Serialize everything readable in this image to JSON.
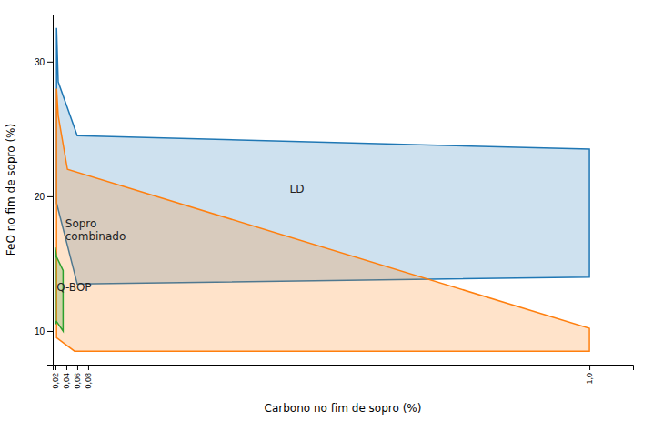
{
  "chart_data": {
    "type": "polygon",
    "xlabel": "Carbono no fim de sopro (%)",
    "ylabel": "FeO no fim de sopro (%)",
    "xlim": [
      0.015,
      1.08
    ],
    "ylim": [
      7.5,
      33.5
    ],
    "xticks": [
      {
        "value": 0.02,
        "label": "0,02"
      },
      {
        "value": 0.04,
        "label": "0,04"
      },
      {
        "value": 0.06,
        "label": "0,06"
      },
      {
        "value": 0.08,
        "label": "0,08"
      },
      {
        "value": 1.0,
        "label": "1,0"
      }
    ],
    "yticks": [
      10,
      20,
      30
    ],
    "grid": false,
    "series": [
      {
        "x": [
          0.022,
          0.025,
          0.06,
          1.0,
          1.0,
          0.06,
          0.022
        ],
        "values": [
          32.5,
          28.5,
          24.5,
          23.5,
          14.0,
          13.5,
          19.5
        ]
      },
      {
        "x": [
          0.022,
          0.025,
          0.042,
          1.0,
          1.0,
          0.055,
          0.022
        ],
        "values": [
          28.0,
          26.0,
          22.0,
          10.2,
          8.5,
          8.5,
          9.5
        ]
      },
      {
        "x": [
          0.0195,
          0.0195,
          0.022,
          0.034,
          0.034,
          0.022
        ],
        "values": [
          16.2,
          10.5,
          10.7,
          10.0,
          14.5,
          15.5
        ]
      }
    ],
    "annotations": [
      {
        "text": "LD",
        "x": 0.45,
        "y": 20.5
      },
      {
        "text": "Sopro\ncombinado",
        "x": 0.038,
        "y": 17.5
      },
      {
        "text": "Q-BOP",
        "x": 0.022,
        "y": 13.2
      }
    ]
  }
}
